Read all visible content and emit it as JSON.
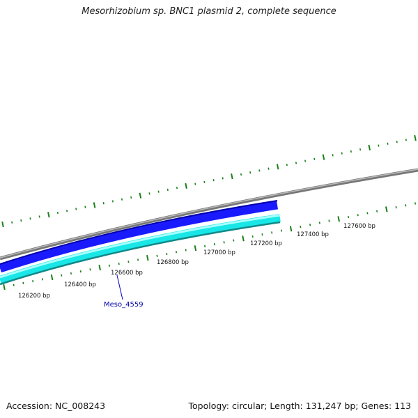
{
  "header": {
    "title": "Mesorhizobium sp. BNC1 plasmid 2, complete sequence"
  },
  "footer": {
    "accession": "Accession: NC_008243",
    "summary": "Topology: circular; Length: 131,247 bp; Genes: 113"
  },
  "map": {
    "ruler_labels": [
      "126200 bp",
      "126400 bp",
      "126600 bp",
      "126800 bp",
      "127000 bp",
      "127200 bp",
      "127400 bp",
      "127600 bp"
    ],
    "gene_label": "Meso_4559",
    "colors": {
      "backbone": "#808080",
      "forward_feature": "#1a1aff",
      "reverse_feature": "#19e6e6",
      "reverse_feature_edge": "#118888",
      "ticks": "#1a801a",
      "gene_label": "#0000aa"
    }
  }
}
